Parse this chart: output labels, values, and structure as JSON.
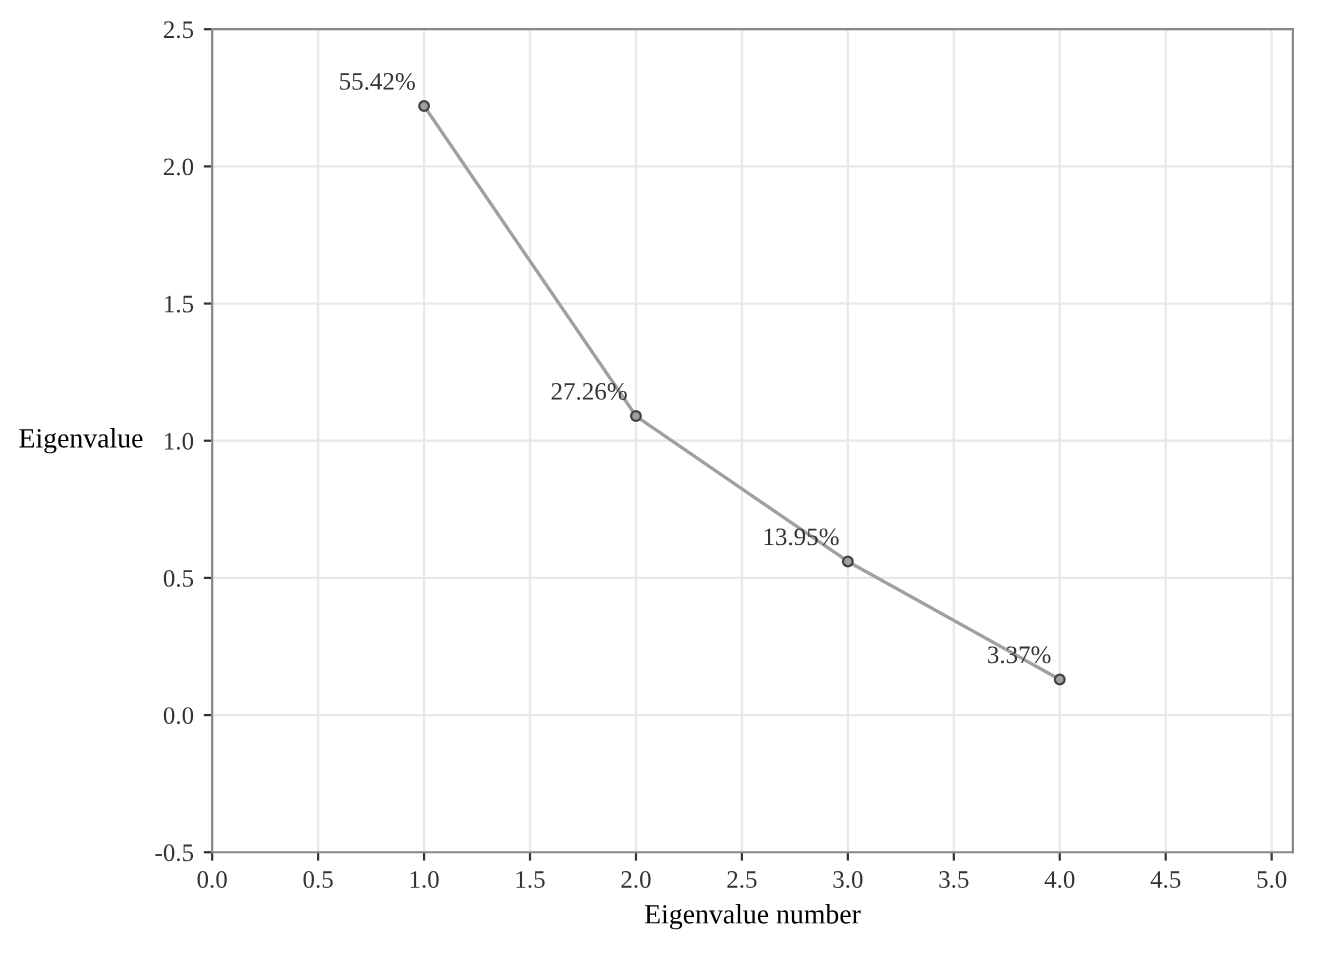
{
  "chart_data": {
    "type": "line",
    "xlabel": "Eigenvalue number",
    "ylabel": "Eigenvalue",
    "x": [
      1,
      2,
      3,
      4
    ],
    "series": [
      {
        "color": "#a0a0a0",
        "values": [
          2.22,
          1.09,
          0.56,
          0.13
        ]
      }
    ],
    "marker": "circle",
    "xlim": [
      0,
      5.1
    ],
    "xticks": [
      {
        "value": 0,
        "label": "0.0"
      },
      {
        "value": 0.5,
        "label": "0.5"
      },
      {
        "value": 1,
        "label": "1.0"
      },
      {
        "value": 1.5,
        "label": "1.5"
      },
      {
        "value": 2,
        "label": "2.0"
      },
      {
        "value": 2.5,
        "label": "2.5"
      },
      {
        "value": 3,
        "label": "3.0"
      },
      {
        "value": 3.5,
        "label": "3.5"
      },
      {
        "value": 4,
        "label": "4.0"
      },
      {
        "value": 4.5,
        "label": "4.5"
      },
      {
        "value": 5,
        "label": "5.0"
      }
    ],
    "ylim": [
      -0.5,
      2.5
    ],
    "yticks": [
      {
        "value": -0.5,
        "label": "-0.5"
      },
      {
        "value": 0,
        "label": "0.0"
      },
      {
        "value": 0.5,
        "label": "0.5"
      },
      {
        "value": 1,
        "label": "1.0"
      },
      {
        "value": 1.5,
        "label": "1.5"
      },
      {
        "value": 2,
        "label": "2.0"
      },
      {
        "value": 2.5,
        "label": "2.5"
      }
    ],
    "grid": true,
    "annotations": [
      {
        "text": "55.42%",
        "x": 1,
        "y": 2.22
      },
      {
        "text": "27.26%",
        "x": 2,
        "y": 1.09
      },
      {
        "text": "13.95%",
        "x": 3,
        "y": 0.56
      },
      {
        "text": "3.37%",
        "x": 4,
        "y": 0.13
      }
    ]
  }
}
